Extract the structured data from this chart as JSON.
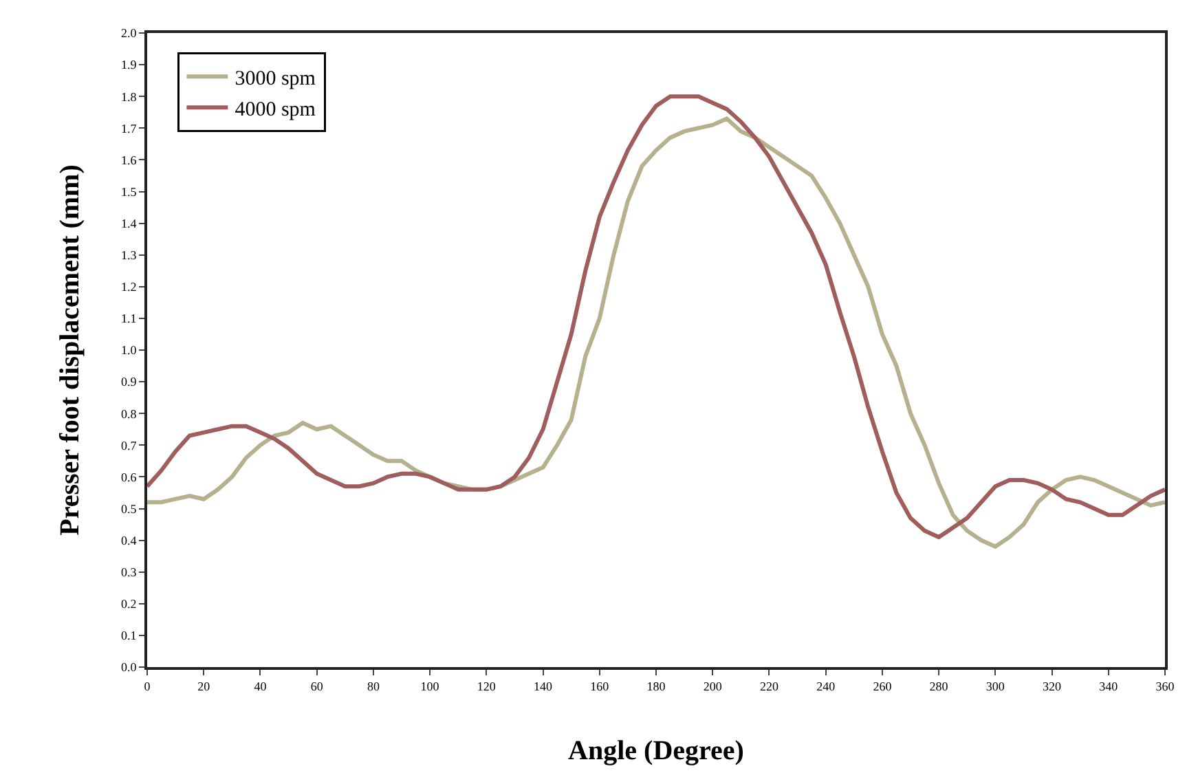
{
  "chart_data": {
    "type": "line",
    "xlabel": "Angle (Degree)",
    "ylabel": "Presser foot displacement (mm)",
    "xlim": [
      0,
      360
    ],
    "xticks": [
      0,
      20,
      40,
      60,
      80,
      100,
      120,
      140,
      160,
      180,
      200,
      220,
      240,
      260,
      280,
      300,
      320,
      340,
      360
    ],
    "ylim": [
      0,
      2
    ],
    "yticks": [
      {
        "value": 0,
        "label": "0.0"
      },
      0.1,
      0.2,
      0.3,
      0.4,
      0.5,
      0.6,
      0.7,
      0.8,
      0.9,
      {
        "value": 1,
        "label": "1.0"
      },
      1.1,
      1.2,
      1.3,
      1.4,
      1.5,
      1.6,
      1.7,
      1.8,
      1.9,
      {
        "value": 2,
        "label": "2.0"
      }
    ],
    "x": [
      0,
      5,
      10,
      15,
      20,
      25,
      30,
      35,
      40,
      45,
      50,
      55,
      60,
      65,
      70,
      75,
      80,
      85,
      90,
      95,
      100,
      105,
      110,
      115,
      120,
      125,
      130,
      135,
      140,
      145,
      150,
      155,
      160,
      165,
      170,
      175,
      180,
      185,
      190,
      195,
      200,
      205,
      210,
      215,
      220,
      225,
      230,
      235,
      240,
      245,
      250,
      255,
      260,
      265,
      270,
      275,
      280,
      285,
      290,
      295,
      300,
      305,
      310,
      315,
      320,
      325,
      330,
      335,
      340,
      345,
      350,
      355,
      360
    ],
    "series": [
      {
        "name": "3000 spm",
        "color": "#b5b18e",
        "values": [
          0.52,
          0.52,
          0.53,
          0.54,
          0.53,
          0.56,
          0.6,
          0.66,
          0.7,
          0.73,
          0.74,
          0.77,
          0.75,
          0.76,
          0.73,
          0.7,
          0.67,
          0.65,
          0.65,
          0.62,
          0.6,
          0.58,
          0.57,
          0.56,
          0.56,
          0.57,
          0.59,
          0.61,
          0.63,
          0.7,
          0.78,
          0.98,
          1.1,
          1.3,
          1.47,
          1.58,
          1.63,
          1.67,
          1.69,
          1.7,
          1.71,
          1.73,
          1.69,
          1.67,
          1.64,
          1.61,
          1.58,
          1.55,
          1.48,
          1.4,
          1.3,
          1.2,
          1.05,
          0.95,
          0.8,
          0.7,
          0.58,
          0.48,
          0.43,
          0.4,
          0.38,
          0.41,
          0.45,
          0.52,
          0.56,
          0.59,
          0.6,
          0.59,
          0.57,
          0.55,
          0.53,
          0.51,
          0.52
        ]
      },
      {
        "name": "4000 spm",
        "color": "#a05d5d",
        "values": [
          0.57,
          0.62,
          0.68,
          0.73,
          0.74,
          0.75,
          0.76,
          0.76,
          0.74,
          0.72,
          0.69,
          0.65,
          0.61,
          0.59,
          0.57,
          0.57,
          0.58,
          0.6,
          0.61,
          0.61,
          0.6,
          0.58,
          0.56,
          0.56,
          0.56,
          0.57,
          0.6,
          0.66,
          0.75,
          0.9,
          1.05,
          1.25,
          1.42,
          1.53,
          1.63,
          1.71,
          1.77,
          1.8,
          1.8,
          1.8,
          1.78,
          1.76,
          1.72,
          1.67,
          1.61,
          1.53,
          1.45,
          1.37,
          1.27,
          1.12,
          0.98,
          0.82,
          0.68,
          0.55,
          0.47,
          0.43,
          0.41,
          0.44,
          0.47,
          0.52,
          0.57,
          0.59,
          0.59,
          0.58,
          0.56,
          0.53,
          0.52,
          0.5,
          0.48,
          0.48,
          0.51,
          0.54,
          0.56
        ]
      }
    ],
    "legend": "top left",
    "marker": "none",
    "line_style": "solid"
  }
}
